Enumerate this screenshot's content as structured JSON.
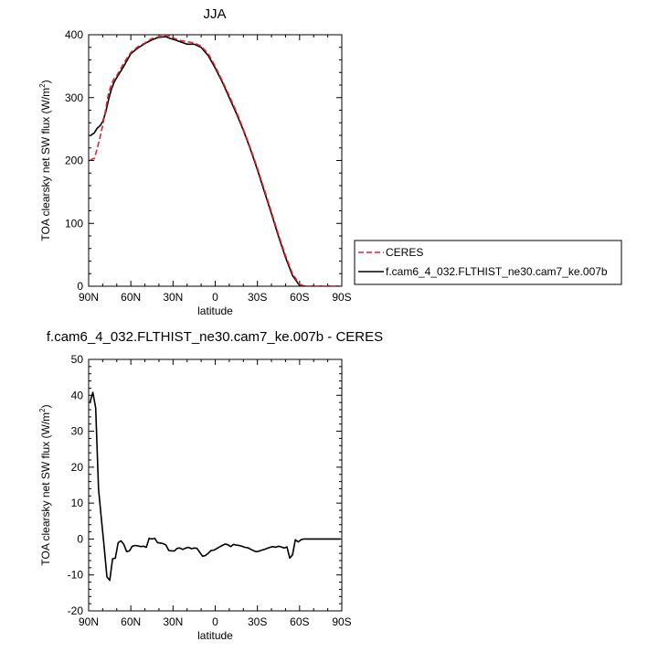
{
  "chart_data": [
    {
      "type": "line",
      "title": "JJA",
      "xlabel": "latitude",
      "ylabel_main": "TOA clearsky net SW flux (W/m",
      "ylabel_sup": "2",
      "ylabel_close": ")",
      "xlim": [
        90,
        -90
      ],
      "ylim": [
        0,
        400
      ],
      "xticks": [
        {
          "value": 90,
          "label": "90N"
        },
        {
          "value": 60,
          "label": "60N"
        },
        {
          "value": 30,
          "label": "30N"
        },
        {
          "value": 0,
          "label": "0"
        },
        {
          "value": -30,
          "label": "30S"
        },
        {
          "value": -60,
          "label": "60S"
        },
        {
          "value": -90,
          "label": "90S"
        }
      ],
      "yticks": [
        0,
        100,
        200,
        300,
        400
      ],
      "legend_position": "right",
      "series": [
        {
          "name": "CERES",
          "color": "#e8232a",
          "style": "dashed",
          "x": [
            89,
            86,
            84,
            82,
            80,
            78,
            76,
            74,
            72,
            70,
            65,
            60,
            55,
            50,
            45,
            40,
            35,
            32,
            30,
            25,
            20,
            15,
            10,
            5,
            0,
            -5,
            -10,
            -15,
            -20,
            -25,
            -30,
            -35,
            -40,
            -45,
            -50,
            -55,
            -60,
            -64,
            -66,
            -68,
            -70,
            -72,
            -74,
            -76,
            -78,
            -80,
            -84,
            -89
          ],
          "y": [
            201,
            203,
            218,
            236,
            256,
            280,
            305,
            320,
            330,
            335,
            355,
            372,
            381,
            387,
            394,
            397,
            399,
            398,
            395,
            391,
            389,
            387,
            382,
            370,
            350,
            327,
            303,
            278,
            250,
            220,
            188,
            153,
            118,
            82,
            49,
            20,
            3,
            0,
            0,
            0,
            0,
            0,
            0,
            0,
            0,
            0,
            0,
            0
          ]
        },
        {
          "name": "f.cam6_4_032.FLTHIST_ne30.cam7_ke.007b",
          "color": "#000000",
          "style": "solid",
          "x": [
            89,
            86,
            84,
            82,
            80,
            78,
            76,
            74,
            72,
            70,
            65,
            60,
            55,
            50,
            45,
            40,
            35,
            32,
            30,
            25,
            20,
            15,
            10,
            5,
            0,
            -5,
            -10,
            -15,
            -20,
            -25,
            -30,
            -35,
            -40,
            -45,
            -50,
            -55,
            -60,
            -64,
            -66,
            -68,
            -70,
            -72,
            -74,
            -76,
            -78,
            -80,
            -84,
            -89
          ],
          "y": [
            239,
            244,
            251,
            255,
            262,
            276,
            295,
            312,
            324,
            332,
            350,
            370,
            379,
            386,
            392,
            396,
            397,
            394,
            393,
            389,
            385,
            385,
            380,
            367,
            347,
            325,
            300,
            275,
            248,
            218,
            185,
            150,
            115,
            79,
            46,
            17,
            1,
            0,
            0,
            0,
            0,
            0,
            0,
            0,
            0,
            0,
            0,
            0
          ]
        }
      ]
    },
    {
      "type": "line",
      "title": "f.cam6_4_032.FLTHIST_ne30.cam7_ke.007b - CERES",
      "xlabel": "latitude",
      "ylabel_main": "TOA clearsky net SW flux (W/m",
      "ylabel_sup": "2",
      "ylabel_close": ")",
      "xlim": [
        90,
        -90
      ],
      "ylim": [
        -20,
        50
      ],
      "xticks": [
        {
          "value": 90,
          "label": "90N"
        },
        {
          "value": 60,
          "label": "60N"
        },
        {
          "value": 30,
          "label": "30N"
        },
        {
          "value": 0,
          "label": "0"
        },
        {
          "value": -30,
          "label": "30S"
        },
        {
          "value": -60,
          "label": "60S"
        },
        {
          "value": -90,
          "label": "90S"
        }
      ],
      "yticks": [
        -20,
        -10,
        0,
        10,
        20,
        30,
        40,
        50
      ],
      "series": [
        {
          "name": "f.cam6_4_032.FLTHIST_ne30.cam7_ke.007b - CERES",
          "color": "#000000",
          "style": "solid",
          "x": [
            89,
            87,
            85,
            83,
            81,
            79,
            77,
            75,
            73,
            71,
            69,
            67,
            65,
            63,
            61,
            59,
            57,
            55,
            53,
            51,
            49,
            47,
            45,
            43,
            41,
            39,
            37,
            35,
            33,
            31,
            29,
            27,
            25,
            23,
            21,
            19,
            17,
            15,
            13,
            11,
            9,
            7,
            5,
            3,
            1,
            -1,
            -3,
            -5,
            -7,
            -9,
            -11,
            -13,
            -15,
            -17,
            -19,
            -21,
            -23,
            -25,
            -27,
            -29,
            -31,
            -33,
            -35,
            -37,
            -39,
            -41,
            -43,
            -45,
            -47,
            -49,
            -51,
            -53,
            -55,
            -57,
            -59,
            -61,
            -63,
            -65,
            -67,
            -69,
            -71,
            -73,
            -75,
            -77,
            -79,
            -81,
            -83,
            -85,
            -87,
            -89
          ],
          "y": [
            38.1,
            40.8,
            36.5,
            14.0,
            6.0,
            -2.0,
            -10.5,
            -11.5,
            -5.5,
            -5.3,
            -1.0,
            -0.5,
            -1.5,
            -3.5,
            -3.3,
            -2.0,
            -1.8,
            -1.9,
            -2.1,
            -2.0,
            -2.3,
            0.2,
            0.0,
            0.2,
            -1.0,
            -1.1,
            -1.3,
            -1.7,
            -3.2,
            -3.3,
            -3.3,
            -2.6,
            -2.5,
            -2.9,
            -2.5,
            -2.3,
            -2.7,
            -2.5,
            -2.6,
            -3.7,
            -4.8,
            -4.6,
            -4.0,
            -3.2,
            -3.1,
            -2.7,
            -2.2,
            -1.8,
            -1.4,
            -1.6,
            -2.1,
            -1.5,
            -1.7,
            -1.8,
            -2.0,
            -2.3,
            -2.4,
            -2.8,
            -3.2,
            -3.5,
            -3.4,
            -3.1,
            -2.9,
            -2.6,
            -2.3,
            -2.1,
            -2.3,
            -2.0,
            -2.2,
            -2.5,
            -2.2,
            -5.3,
            -4.4,
            -0.2,
            -0.8,
            -0.2,
            0.0,
            0.0,
            0.0,
            0.0,
            0.0,
            0.0,
            0.0,
            0.0,
            0.0,
            0.0,
            0.0,
            0.0,
            0.0,
            0.0
          ]
        }
      ]
    }
  ]
}
